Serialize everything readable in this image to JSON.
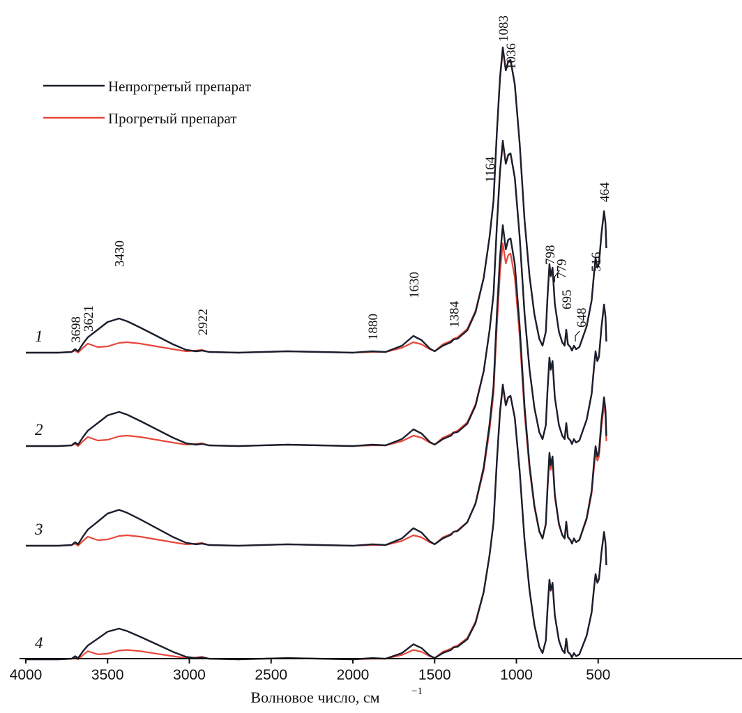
{
  "chart_data": {
    "type": "line",
    "xlabel": "Волновое число, см",
    "xlabel_sup": "−1",
    "ylabel": "",
    "x_reversed": true,
    "xlim": [
      4000,
      450
    ],
    "x_ticks": [
      4000,
      3500,
      3000,
      2500,
      2000,
      1500,
      1000,
      500
    ],
    "legend": {
      "placement": "top-left",
      "entries": [
        {
          "name": "Непрогретый препарат",
          "color": "#1a1f2e"
        },
        {
          "name": "Прогретый препарат",
          "color": "#e8473a"
        }
      ]
    },
    "spectra_labels": [
      "1",
      "2",
      "3",
      "4"
    ],
    "peak_labels": [
      "3698",
      "3621",
      "3430",
      "2922",
      "1880",
      "1630",
      "1384",
      "1164",
      "1083",
      "1036",
      "798",
      "779",
      "695",
      "648",
      "516",
      "464"
    ],
    "unheated_profile": [
      [
        4000,
        0
      ],
      [
        3800,
        0
      ],
      [
        3720,
        1
      ],
      [
        3698,
        5
      ],
      [
        3680,
        2
      ],
      [
        3650,
        13
      ],
      [
        3621,
        22
      ],
      [
        3560,
        33
      ],
      [
        3500,
        44
      ],
      [
        3430,
        49
      ],
      [
        3380,
        45
      ],
      [
        3300,
        36
      ],
      [
        3200,
        24
      ],
      [
        3100,
        12
      ],
      [
        3020,
        4
      ],
      [
        2960,
        2
      ],
      [
        2922,
        3
      ],
      [
        2880,
        1
      ],
      [
        2700,
        0
      ],
      [
        2400,
        2
      ],
      [
        2200,
        1
      ],
      [
        2000,
        0
      ],
      [
        1880,
        2
      ],
      [
        1800,
        1
      ],
      [
        1700,
        10
      ],
      [
        1630,
        24
      ],
      [
        1580,
        18
      ],
      [
        1530,
        6
      ],
      [
        1500,
        2
      ],
      [
        1450,
        10
      ],
      [
        1400,
        15
      ],
      [
        1384,
        19
      ],
      [
        1360,
        20
      ],
      [
        1300,
        32
      ],
      [
        1250,
        58
      ],
      [
        1200,
        107
      ],
      [
        1164,
        166
      ],
      [
        1140,
        218
      ],
      [
        1120,
        315
      ],
      [
        1100,
        395
      ],
      [
        1083,
        438
      ],
      [
        1065,
        405
      ],
      [
        1050,
        418
      ],
      [
        1036,
        420
      ],
      [
        1010,
        385
      ],
      [
        980,
        300
      ],
      [
        950,
        190
      ],
      [
        920,
        110
      ],
      [
        890,
        55
      ],
      [
        860,
        20
      ],
      [
        840,
        10
      ],
      [
        820,
        30
      ],
      [
        810,
        80
      ],
      [
        798,
        127
      ],
      [
        790,
        110
      ],
      [
        779,
        122
      ],
      [
        765,
        70
      ],
      [
        740,
        30
      ],
      [
        720,
        15
      ],
      [
        705,
        10
      ],
      [
        695,
        33
      ],
      [
        685,
        12
      ],
      [
        670,
        8
      ],
      [
        660,
        3
      ],
      [
        648,
        10
      ],
      [
        635,
        5
      ],
      [
        615,
        8
      ],
      [
        600,
        18
      ],
      [
        570,
        38
      ],
      [
        540,
        75
      ],
      [
        525,
        115
      ],
      [
        516,
        136
      ],
      [
        505,
        122
      ],
      [
        495,
        128
      ],
      [
        480,
        170
      ],
      [
        464,
        203
      ],
      [
        455,
        185
      ],
      [
        450,
        150
      ]
    ],
    "heated_profile": [
      [
        4000,
        0
      ],
      [
        3800,
        0
      ],
      [
        3720,
        1
      ],
      [
        3698,
        3
      ],
      [
        3680,
        0
      ],
      [
        3650,
        7
      ],
      [
        3621,
        13
      ],
      [
        3560,
        8
      ],
      [
        3500,
        9
      ],
      [
        3430,
        14
      ],
      [
        3380,
        15
      ],
      [
        3300,
        13
      ],
      [
        3200,
        9
      ],
      [
        3100,
        5
      ],
      [
        3020,
        2
      ],
      [
        2960,
        3
      ],
      [
        2922,
        4
      ],
      [
        2880,
        1
      ],
      [
        2700,
        0
      ],
      [
        2400,
        2
      ],
      [
        2200,
        1
      ],
      [
        2000,
        0
      ],
      [
        1880,
        1
      ],
      [
        1800,
        1
      ],
      [
        1700,
        7
      ],
      [
        1630,
        15
      ],
      [
        1580,
        12
      ],
      [
        1530,
        5
      ],
      [
        1500,
        2
      ],
      [
        1450,
        12
      ],
      [
        1400,
        17
      ],
      [
        1384,
        20
      ],
      [
        1360,
        22
      ],
      [
        1300,
        34
      ],
      [
        1250,
        60
      ],
      [
        1200,
        108
      ],
      [
        1164,
        166
      ],
      [
        1140,
        218
      ],
      [
        1120,
        313
      ],
      [
        1100,
        392
      ],
      [
        1083,
        434
      ],
      [
        1065,
        405
      ],
      [
        1050,
        417
      ],
      [
        1036,
        419
      ],
      [
        1010,
        385
      ],
      [
        980,
        300
      ],
      [
        950,
        190
      ],
      [
        920,
        110
      ],
      [
        890,
        55
      ],
      [
        860,
        20
      ],
      [
        840,
        10
      ],
      [
        820,
        30
      ],
      [
        810,
        80
      ],
      [
        798,
        126
      ],
      [
        790,
        109
      ],
      [
        779,
        121
      ],
      [
        765,
        70
      ],
      [
        740,
        30
      ],
      [
        720,
        15
      ],
      [
        705,
        10
      ],
      [
        695,
        32
      ],
      [
        685,
        12
      ],
      [
        670,
        8
      ],
      [
        660,
        3
      ],
      [
        648,
        10
      ],
      [
        635,
        5
      ],
      [
        615,
        8
      ],
      [
        600,
        18
      ],
      [
        570,
        38
      ],
      [
        540,
        75
      ],
      [
        525,
        113
      ],
      [
        516,
        134
      ],
      [
        505,
        122
      ],
      [
        495,
        128
      ],
      [
        480,
        170
      ],
      [
        464,
        203
      ],
      [
        455,
        185
      ],
      [
        450,
        150
      ]
    ],
    "series_scale": [
      {
        "label": "1",
        "unheated": 1.0,
        "heated": 1.0
      },
      {
        "label": "2",
        "unheated": 1.0,
        "heated": 1.0
      },
      {
        "label": "3",
        "unheated": 1.05,
        "heated": 1.0
      },
      {
        "label": "4",
        "unheated": 0.9,
        "heated": 0.9
      }
    ]
  }
}
